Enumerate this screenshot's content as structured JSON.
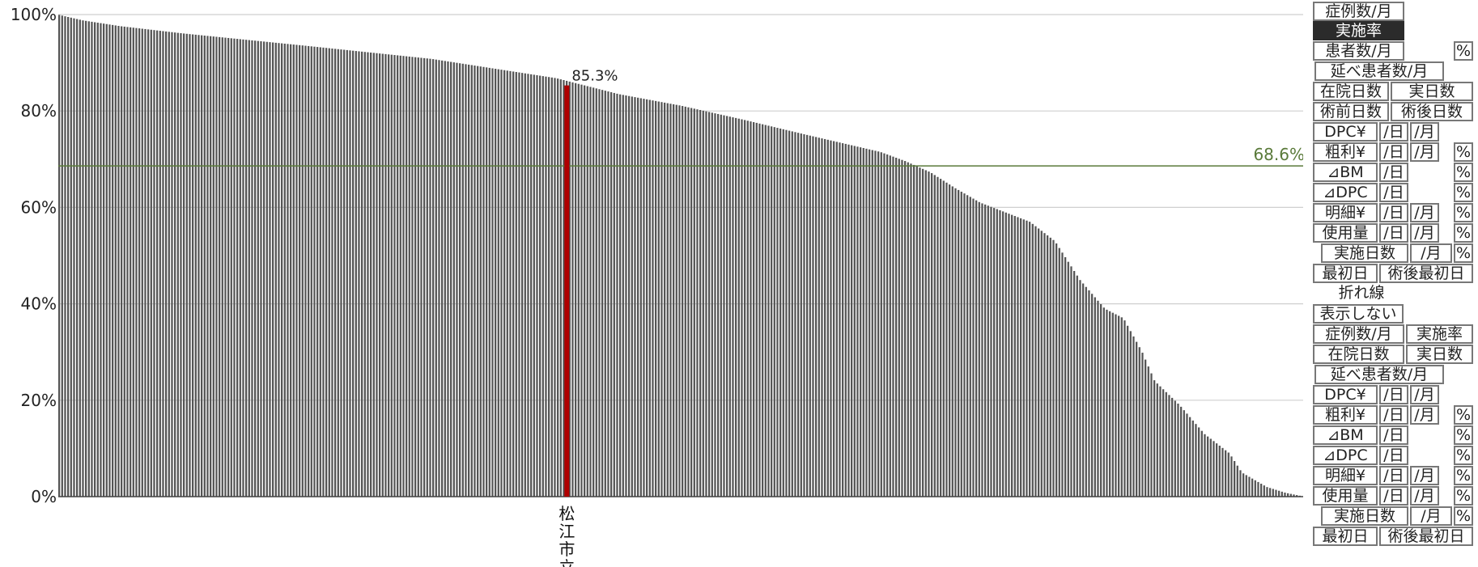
{
  "chart_data": {
    "type": "bar",
    "y_ticks": [
      "100%",
      "80%",
      "60%",
      "40%",
      "20%",
      "0%"
    ],
    "ylim": [
      0,
      100
    ],
    "grid": "horizontal",
    "n_hospitals": 420,
    "curve_points": [
      [
        0,
        100
      ],
      [
        0.02,
        98.8
      ],
      [
        0.05,
        97.6
      ],
      [
        0.1,
        96.1
      ],
      [
        0.2,
        93.5
      ],
      [
        0.3,
        90.8
      ],
      [
        0.4,
        86.8
      ],
      [
        0.45,
        83.5
      ],
      [
        0.5,
        81.1
      ],
      [
        0.55,
        78.2
      ],
      [
        0.6,
        75.1
      ],
      [
        0.66,
        71.5
      ],
      [
        0.68,
        69.6
      ],
      [
        0.7,
        67.3
      ],
      [
        0.72,
        64.0
      ],
      [
        0.74,
        61.0
      ],
      [
        0.76,
        59.0
      ],
      [
        0.78,
        57.0
      ],
      [
        0.8,
        53.0
      ],
      [
        0.82,
        45.0
      ],
      [
        0.84,
        39.0
      ],
      [
        0.855,
        37.0
      ],
      [
        0.87,
        30.0
      ],
      [
        0.88,
        24.0
      ],
      [
        0.9,
        19.0
      ],
      [
        0.92,
        13.0
      ],
      [
        0.94,
        9.0
      ],
      [
        0.95,
        5.0
      ],
      [
        0.97,
        2.0
      ],
      [
        0.985,
        0.8
      ],
      [
        1.0,
        0.0
      ]
    ],
    "highlight": {
      "label": "松江市立",
      "value": 85.3,
      "label_text": "85.3%",
      "position_fraction": 0.408,
      "color": "#b00000"
    },
    "average": {
      "value": 68.6,
      "label_text": "68.6%",
      "color": "#5a7a3a"
    },
    "bar_color": "#555555"
  },
  "controls": {
    "metric_buttons": [
      {
        "id": "cases-month",
        "label": "症例数/月"
      },
      {
        "id": "impl-rate",
        "label": "実施率",
        "active": true
      },
      {
        "id": "patients-month",
        "label": "患者数/月"
      },
      {
        "id": "patients-pct",
        "label": "%"
      },
      {
        "id": "total-patients",
        "label": "延べ患者数/月"
      },
      {
        "id": "stay-days",
        "label": "在院日数"
      },
      {
        "id": "actual-days",
        "label": "実日数"
      },
      {
        "id": "preop-days",
        "label": "術前日数"
      },
      {
        "id": "postop-days",
        "label": "術後日数"
      },
      {
        "id": "dpc",
        "label": "DPC¥"
      },
      {
        "id": "dpc-day",
        "label": "/日"
      },
      {
        "id": "dpc-month",
        "label": "/月"
      },
      {
        "id": "profit",
        "label": "粗利¥"
      },
      {
        "id": "profit-day",
        "label": "/日"
      },
      {
        "id": "profit-month",
        "label": "/月"
      },
      {
        "id": "profit-pct",
        "label": "%"
      },
      {
        "id": "dbm",
        "label": "⊿BM"
      },
      {
        "id": "dbm-day",
        "label": "/日"
      },
      {
        "id": "dbm-pct",
        "label": "%"
      },
      {
        "id": "ddpc",
        "label": "⊿DPC"
      },
      {
        "id": "ddpc-day",
        "label": "/日"
      },
      {
        "id": "ddpc-pct",
        "label": "%"
      },
      {
        "id": "detail",
        "label": "明細¥"
      },
      {
        "id": "detail-day",
        "label": "/日"
      },
      {
        "id": "detail-month",
        "label": "/月"
      },
      {
        "id": "detail-pct",
        "label": "%"
      },
      {
        "id": "usage",
        "label": "使用量"
      },
      {
        "id": "usage-day",
        "label": "/日"
      },
      {
        "id": "usage-month",
        "label": "/月"
      },
      {
        "id": "usage-pct",
        "label": "%"
      },
      {
        "id": "impl-days",
        "label": "実施日数"
      },
      {
        "id": "impl-days-month",
        "label": "/月"
      },
      {
        "id": "impl-days-pct",
        "label": "%"
      },
      {
        "id": "first-day",
        "label": "最初日"
      },
      {
        "id": "postop-first-day",
        "label": "術後最初日"
      }
    ],
    "line_section_label": "折れ線",
    "line_buttons": [
      {
        "id": "l-hide",
        "label": "表示しない"
      },
      {
        "id": "l-cases-month",
        "label": "症例数/月"
      },
      {
        "id": "l-impl-rate",
        "label": "実施率"
      },
      {
        "id": "l-stay-days",
        "label": "在院日数"
      },
      {
        "id": "l-actual-days",
        "label": "実日数"
      },
      {
        "id": "l-total-patients",
        "label": "延べ患者数/月"
      },
      {
        "id": "l-dpc",
        "label": "DPC¥"
      },
      {
        "id": "l-dpc-day",
        "label": "/日"
      },
      {
        "id": "l-dpc-month",
        "label": "/月"
      },
      {
        "id": "l-profit",
        "label": "粗利¥"
      },
      {
        "id": "l-profit-day",
        "label": "/日"
      },
      {
        "id": "l-profit-month",
        "label": "/月"
      },
      {
        "id": "l-profit-pct",
        "label": "%"
      },
      {
        "id": "l-dbm",
        "label": "⊿BM"
      },
      {
        "id": "l-dbm-day",
        "label": "/日"
      },
      {
        "id": "l-dbm-pct",
        "label": "%"
      },
      {
        "id": "l-ddpc",
        "label": "⊿DPC"
      },
      {
        "id": "l-ddpc-day",
        "label": "/日"
      },
      {
        "id": "l-ddpc-pct",
        "label": "%"
      },
      {
        "id": "l-detail",
        "label": "明細¥"
      },
      {
        "id": "l-detail-day",
        "label": "/日"
      },
      {
        "id": "l-detail-month",
        "label": "/月"
      },
      {
        "id": "l-detail-pct",
        "label": "%"
      },
      {
        "id": "l-usage",
        "label": "使用量"
      },
      {
        "id": "l-usage-day",
        "label": "/日"
      },
      {
        "id": "l-usage-month",
        "label": "/月"
      },
      {
        "id": "l-usage-pct",
        "label": "%"
      },
      {
        "id": "l-impl-days",
        "label": "実施日数"
      },
      {
        "id": "l-impl-days-month",
        "label": "/月"
      },
      {
        "id": "l-impl-days-pct",
        "label": "%"
      },
      {
        "id": "l-first-day",
        "label": "最初日"
      },
      {
        "id": "l-postop-first-day",
        "label": "術後最初日"
      }
    ]
  }
}
